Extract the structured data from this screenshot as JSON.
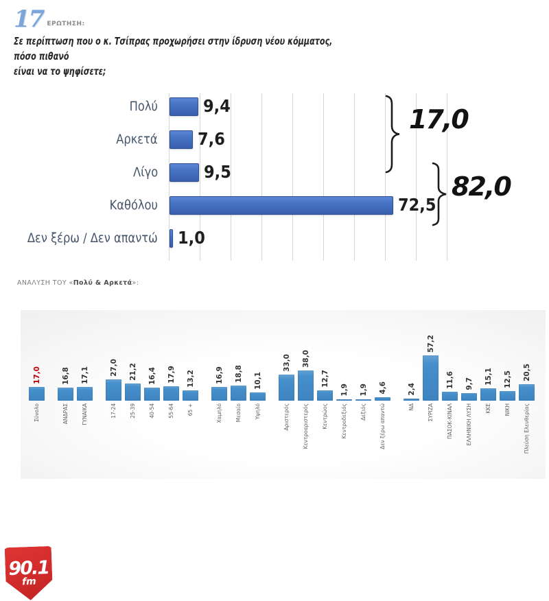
{
  "header": {
    "number": "17",
    "number_label": "ΕΡΩΤΗΣΗ:",
    "question_line1": "Σε περίπτωση που ο κ. Τσίπρας προχωρήσει στην ίδρυση νέου κόμματος, πόσο πιθανό",
    "question_line2": "είναι να το ψηφίσετε;"
  },
  "colors": {
    "main_bar": "#4472c4",
    "analysis_bar": "#4690cc",
    "highlight_value": "#c00000",
    "header_number_blue": "#7ca6d9",
    "grid": "#d5d5d5",
    "logo_red": "#cf2a2a"
  },
  "analysis": {
    "title_prefix": "ΑΝΑΛΥΣΗ ΤΟΥ «",
    "title_bold": "Πολύ & Αρκετά",
    "title_suffix": "»:"
  },
  "logo": {
    "station": "90.1",
    "sub": "fm"
  },
  "chart_data": [
    {
      "type": "bar",
      "orientation": "horizontal",
      "categories": [
        "Πολύ",
        "Αρκετά",
        "Λίγο",
        "Καθόλου",
        "Δεν ξέρω / Δεν απαντώ"
      ],
      "values": [
        9.4,
        7.6,
        9.5,
        72.5,
        1.0
      ],
      "value_labels": [
        "9,4",
        "7,6",
        "9,5",
        "72,5",
        "1,0"
      ],
      "xlim": [
        0,
        90
      ],
      "grid": true,
      "annotations": [
        {
          "label": "17,0",
          "covers": [
            "Πολύ",
            "Αρκετά"
          ]
        },
        {
          "label": "82,0",
          "covers": [
            "Λίγο",
            "Καθόλου"
          ]
        }
      ]
    },
    {
      "type": "bar",
      "orientation": "vertical",
      "title": "ΑΝΑΛΥΣΗ ΤΟΥ «Πολύ & Αρκετά»:",
      "ylim": [
        0,
        60
      ],
      "grid": false,
      "groups": [
        {
          "items": [
            {
              "label": "Σύνολο",
              "value": 17.0,
              "text": "17,0",
              "highlight": true
            }
          ]
        },
        {
          "items": [
            {
              "label": "ΑΝΔΡΑΣ",
              "value": 16.8,
              "text": "16,8"
            },
            {
              "label": "ΓΥΝΑΙΚΑ",
              "value": 17.1,
              "text": "17,1"
            }
          ]
        },
        {
          "items": [
            {
              "label": "17-24",
              "value": 27.0,
              "text": "27,0"
            },
            {
              "label": "25-39",
              "value": 21.2,
              "text": "21,2"
            },
            {
              "label": "40-54",
              "value": 16.4,
              "text": "16,4"
            },
            {
              "label": "55-64",
              "value": 17.9,
              "text": "17,9"
            },
            {
              "label": "65 +",
              "value": 13.2,
              "text": "13,2"
            }
          ]
        },
        {
          "items": [
            {
              "label": "Χαμηλό",
              "value": 16.9,
              "text": "16,9"
            },
            {
              "label": "Μεσαίο",
              "value": 18.8,
              "text": "18,8"
            },
            {
              "label": "Υψηλό",
              "value": 10.1,
              "text": "10,1"
            }
          ]
        },
        {
          "items": [
            {
              "label": "Αριστερός",
              "value": 33.0,
              "text": "33,0"
            },
            {
              "label": "Κεντροαριστερός",
              "value": 38.0,
              "text": "38,0"
            },
            {
              "label": "Κεντρώος",
              "value": 12.7,
              "text": "12,7"
            },
            {
              "label": "Κεντροδεξιός",
              "value": 1.9,
              "text": "1,9"
            },
            {
              "label": "Δεξιός",
              "value": 1.9,
              "text": "1,9"
            },
            {
              "label": "Δεν ξέρω απαντώ",
              "value": 4.6,
              "text": "4,6"
            }
          ]
        },
        {
          "items": [
            {
              "label": "ΝΔ",
              "value": 2.4,
              "text": "2,4"
            },
            {
              "label": "ΣΥΡΙΖΑ",
              "value": 57.2,
              "text": "57,2"
            },
            {
              "label": "ΠΑΣΟΚ-ΚΙΝΑΛ",
              "value": 11.6,
              "text": "11,6"
            },
            {
              "label": "ΕΛΛΗΝΙΚΗ ΛΥΣΗ",
              "value": 9.7,
              "text": "9,7"
            },
            {
              "label": "ΚΚΕ",
              "value": 15.1,
              "text": "15,1"
            },
            {
              "label": "ΝΙΚΗ",
              "value": 12.5,
              "text": "12,5"
            },
            {
              "label": "Πλεύση Ελευθερίας",
              "value": 20.5,
              "text": "20,5"
            }
          ]
        }
      ]
    }
  ]
}
